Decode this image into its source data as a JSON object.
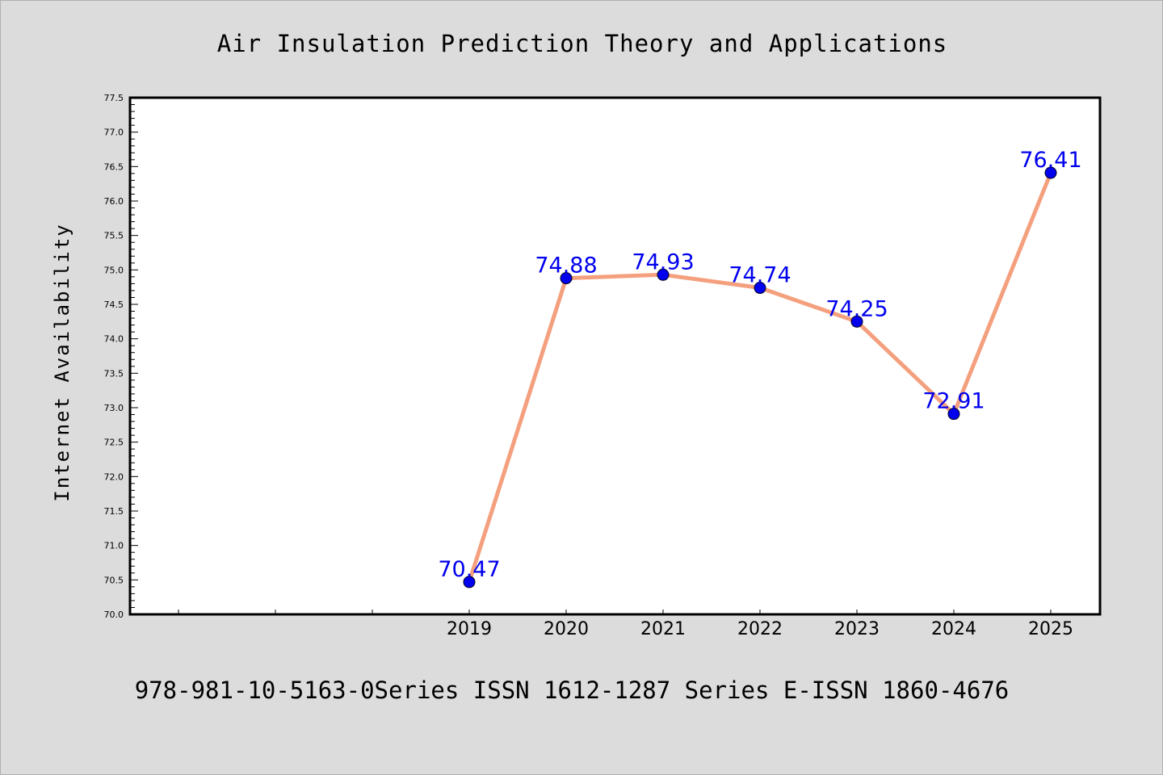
{
  "colors": {
    "background": "#dcdcdc",
    "plot_background": "#ffffff",
    "frame": "#000000",
    "line": "#f4a07e",
    "marker": "#0000ee",
    "data_label": "#0000ee",
    "text": "#000000"
  },
  "footer": {
    "text": "978-981-10-5163-0Series ISSN 1612-1287 Series E-ISSN 1860-4676"
  },
  "chart_data": {
    "type": "line",
    "title": "Air Insulation Prediction Theory and Applications",
    "xlabel": "",
    "ylabel": "Internet Availability",
    "x": [
      "2019",
      "2020",
      "2021",
      "2022",
      "2023",
      "2024",
      "2025"
    ],
    "series": [
      {
        "values": [
          70.47,
          74.88,
          74.93,
          74.74,
          74.25,
          72.91,
          76.41
        ],
        "data_labels": [
          "70.47",
          "74.88",
          "74.93",
          "74.74",
          "74.25",
          "72.91",
          "76.41"
        ]
      }
    ],
    "ylim": [
      70.0,
      77.5
    ],
    "y_ticks": [
      "70.0",
      "70.5",
      "71.0",
      "71.5",
      "72.0",
      "72.5",
      "73.0",
      "73.5",
      "74.0",
      "74.5",
      "75.0",
      "75.5",
      "76.0",
      "76.5",
      "77.0",
      "77.5"
    ],
    "grid": false,
    "legend": "none"
  }
}
